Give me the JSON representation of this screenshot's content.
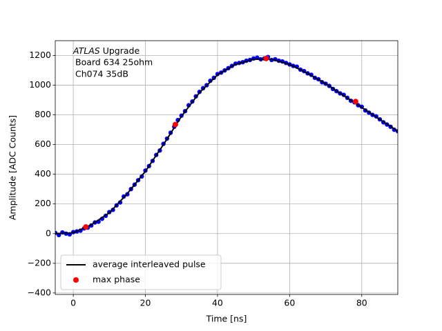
{
  "chart_data": {
    "type": "scatter",
    "xlabel": "Time [ns]",
    "ylabel": "Amplitude [ADC Counts]",
    "annotation": [
      [
        "ATLAS",
        "Upgrade"
      ],
      "Board 634 25ohm",
      "Ch074 35dB"
    ],
    "xlim": [
      -5,
      90
    ],
    "ylim": [
      -410,
      1300
    ],
    "xticks": [
      0,
      20,
      40,
      60,
      80
    ],
    "yticks": [
      {
        "value": -400,
        "label": "−400"
      },
      {
        "value": -200,
        "label": "−200"
      },
      0,
      200,
      400,
      600,
      800,
      1000,
      1200
    ],
    "grid": true,
    "legend": "lower left",
    "series": [
      {
        "type": "scatter",
        "color": "#0000ff",
        "x": [
          -5,
          -4,
          -3,
          -2,
          -1,
          0,
          1,
          2,
          3,
          4,
          5,
          6,
          7,
          8,
          9,
          10,
          11,
          12,
          13,
          14,
          15,
          16,
          17,
          18,
          19,
          20,
          21,
          22,
          23,
          24,
          25,
          26,
          27,
          28,
          29,
          30,
          31,
          32,
          33,
          34,
          35,
          36,
          37,
          38,
          39,
          40,
          41,
          42,
          43,
          44,
          45,
          46,
          47,
          48,
          49,
          50,
          51,
          52,
          53,
          54,
          55,
          56,
          57,
          58,
          59,
          60,
          61,
          62,
          63,
          64,
          65,
          66,
          67,
          68,
          69,
          70,
          71,
          72,
          73,
          74,
          75,
          76,
          77,
          78,
          79,
          80,
          81,
          82,
          83,
          84,
          85,
          86,
          87,
          88,
          89,
          90
        ],
        "values": [
          5,
          -10,
          8,
          0,
          -5,
          10,
          15,
          20,
          35,
          40,
          55,
          75,
          80,
          100,
          120,
          145,
          160,
          190,
          210,
          250,
          265,
          300,
          330,
          360,
          385,
          425,
          455,
          490,
          530,
          560,
          605,
          640,
          680,
          720,
          765,
          795,
          825,
          865,
          890,
          925,
          955,
          980,
          1000,
          1030,
          1050,
          1075,
          1085,
          1100,
          1115,
          1130,
          1145,
          1150,
          1155,
          1165,
          1170,
          1180,
          1185,
          1175,
          1180,
          1190,
          1170,
          1175,
          1165,
          1160,
          1150,
          1140,
          1130,
          1125,
          1105,
          1095,
          1080,
          1070,
          1050,
          1040,
          1020,
          1010,
          995,
          975,
          960,
          945,
          935,
          915,
          895,
          885,
          865,
          855,
          830,
          815,
          800,
          790,
          770,
          750,
          735,
          720,
          700,
          690
        ]
      },
      {
        "type": "line",
        "name": "average interleaved pulse",
        "color": "#000000",
        "x": [
          -5,
          0,
          5,
          10,
          15,
          20,
          25,
          30,
          35,
          40,
          45,
          50,
          55,
          60,
          65,
          70,
          75,
          80,
          85,
          90
        ],
        "values": [
          0,
          5,
          60,
          140,
          270,
          420,
          600,
          790,
          950,
          1070,
          1140,
          1175,
          1175,
          1140,
          1080,
          1010,
          930,
          850,
          770,
          690
        ]
      },
      {
        "type": "scatter",
        "name": "max phase",
        "color": "#ff0000",
        "x": [
          3.5,
          28.3,
          53.5,
          78.3
        ],
        "values": [
          45,
          735,
          1180,
          890
        ]
      }
    ]
  }
}
